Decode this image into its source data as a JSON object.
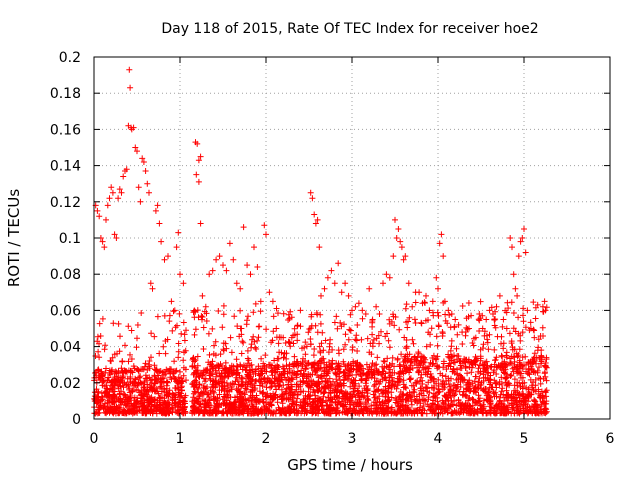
{
  "chart_data": {
    "type": "scatter",
    "title": "Day 118 of 2015, Rate Of TEC Index for receiver hoe2",
    "xlabel": "GPS time / hours",
    "ylabel": "ROTI / TECUs",
    "xlim": [
      0,
      6
    ],
    "ylim": [
      0,
      0.2
    ],
    "x_ticks": [
      "0",
      "1",
      "2",
      "3",
      "4",
      "5",
      "6"
    ],
    "y_ticks": [
      "0",
      "0.02",
      "0.04",
      "0.06",
      "0.08",
      "0.1",
      "0.12",
      "0.14",
      "0.16",
      "0.18",
      "0.2"
    ],
    "grid": true,
    "marker": "plus",
    "series_color": "#ff0000",
    "series": [
      {
        "name": "hoe2",
        "points": [
          [
            0.02,
            0.118
          ],
          [
            0.04,
            0.115
          ],
          [
            0.06,
            0.112
          ],
          [
            0.08,
            0.1
          ],
          [
            0.1,
            0.098
          ],
          [
            0.12,
            0.095
          ],
          [
            0.14,
            0.11
          ],
          [
            0.16,
            0.118
          ],
          [
            0.18,
            0.122
          ],
          [
            0.2,
            0.128
          ],
          [
            0.22,
            0.125
          ],
          [
            0.24,
            0.102
          ],
          [
            0.26,
            0.1
          ],
          [
            0.28,
            0.122
          ],
          [
            0.3,
            0.127
          ],
          [
            0.32,
            0.125
          ],
          [
            0.34,
            0.134
          ],
          [
            0.36,
            0.137
          ],
          [
            0.38,
            0.138
          ],
          [
            0.4,
            0.162
          ],
          [
            0.41,
            0.193
          ],
          [
            0.42,
            0.183
          ],
          [
            0.43,
            0.161
          ],
          [
            0.44,
            0.16
          ],
          [
            0.46,
            0.161
          ],
          [
            0.48,
            0.15
          ],
          [
            0.5,
            0.148
          ],
          [
            0.52,
            0.128
          ],
          [
            0.54,
            0.12
          ],
          [
            0.56,
            0.144
          ],
          [
            0.58,
            0.142
          ],
          [
            0.6,
            0.137
          ],
          [
            0.62,
            0.13
          ],
          [
            0.64,
            0.125
          ],
          [
            0.66,
            0.075
          ],
          [
            0.68,
            0.072
          ],
          [
            0.72,
            0.115
          ],
          [
            0.74,
            0.118
          ],
          [
            0.76,
            0.108
          ],
          [
            0.78,
            0.098
          ],
          [
            0.82,
            0.088
          ],
          [
            0.86,
            0.09
          ],
          [
            0.9,
            0.065
          ],
          [
            0.94,
            0.06
          ],
          [
            0.96,
            0.095
          ],
          [
            0.98,
            0.103
          ],
          [
            1.0,
            0.08
          ],
          [
            1.04,
            0.075
          ],
          [
            1.18,
            0.153
          ],
          [
            1.2,
            0.152
          ],
          [
            1.22,
            0.143
          ],
          [
            1.24,
            0.145
          ],
          [
            1.19,
            0.135
          ],
          [
            1.22,
            0.131
          ],
          [
            1.24,
            0.108
          ],
          [
            1.26,
            0.068
          ],
          [
            1.3,
            0.062
          ],
          [
            1.34,
            0.08
          ],
          [
            1.38,
            0.082
          ],
          [
            1.42,
            0.088
          ],
          [
            1.46,
            0.09
          ],
          [
            1.5,
            0.085
          ],
          [
            1.54,
            0.082
          ],
          [
            1.58,
            0.097
          ],
          [
            1.62,
            0.088
          ],
          [
            1.66,
            0.075
          ],
          [
            1.7,
            0.072
          ],
          [
            1.74,
            0.106
          ],
          [
            1.78,
            0.085
          ],
          [
            1.82,
            0.08
          ],
          [
            1.86,
            0.095
          ],
          [
            1.9,
            0.084
          ],
          [
            1.94,
            0.065
          ],
          [
            1.98,
            0.107
          ],
          [
            2.0,
            0.102
          ],
          [
            2.04,
            0.07
          ],
          [
            2.08,
            0.065
          ],
          [
            2.12,
            0.05
          ],
          [
            2.2,
            0.045
          ],
          [
            2.3,
            0.045
          ],
          [
            2.4,
            0.06
          ],
          [
            2.52,
            0.125
          ],
          [
            2.54,
            0.122
          ],
          [
            2.56,
            0.113
          ],
          [
            2.58,
            0.108
          ],
          [
            2.6,
            0.11
          ],
          [
            2.62,
            0.095
          ],
          [
            2.64,
            0.068
          ],
          [
            2.68,
            0.072
          ],
          [
            2.72,
            0.078
          ],
          [
            2.76,
            0.082
          ],
          [
            2.8,
            0.075
          ],
          [
            2.84,
            0.086
          ],
          [
            2.88,
            0.07
          ],
          [
            2.92,
            0.075
          ],
          [
            2.96,
            0.068
          ],
          [
            3.0,
            0.06
          ],
          [
            3.04,
            0.062
          ],
          [
            3.08,
            0.064
          ],
          [
            3.12,
            0.06
          ],
          [
            3.16,
            0.058
          ],
          [
            3.2,
            0.072
          ],
          [
            3.24,
            0.055
          ],
          [
            3.28,
            0.062
          ],
          [
            3.32,
            0.058
          ],
          [
            3.36,
            0.075
          ],
          [
            3.4,
            0.08
          ],
          [
            3.44,
            0.078
          ],
          [
            3.48,
            0.09
          ],
          [
            3.5,
            0.11
          ],
          [
            3.52,
            0.1
          ],
          [
            3.54,
            0.105
          ],
          [
            3.56,
            0.098
          ],
          [
            3.58,
            0.095
          ],
          [
            3.6,
            0.088
          ],
          [
            3.62,
            0.09
          ],
          [
            3.66,
            0.075
          ],
          [
            3.7,
            0.062
          ],
          [
            3.74,
            0.07
          ],
          [
            3.78,
            0.07
          ],
          [
            3.82,
            0.064
          ],
          [
            3.86,
            0.068
          ],
          [
            3.9,
            0.06
          ],
          [
            3.94,
            0.065
          ],
          [
            3.98,
            0.078
          ],
          [
            4.0,
            0.072
          ],
          [
            4.02,
            0.097
          ],
          [
            4.04,
            0.102
          ],
          [
            4.06,
            0.09
          ],
          [
            4.08,
            0.065
          ],
          [
            4.12,
            0.06
          ],
          [
            4.16,
            0.058
          ],
          [
            4.2,
            0.055
          ],
          [
            4.24,
            0.052
          ],
          [
            4.28,
            0.048
          ],
          [
            4.32,
            0.046
          ],
          [
            4.36,
            0.05
          ],
          [
            4.4,
            0.042
          ],
          [
            4.44,
            0.045
          ],
          [
            4.48,
            0.058
          ],
          [
            4.52,
            0.05
          ],
          [
            4.56,
            0.055
          ],
          [
            4.6,
            0.06
          ],
          [
            4.64,
            0.058
          ],
          [
            4.68,
            0.062
          ],
          [
            4.72,
            0.068
          ],
          [
            4.76,
            0.055
          ],
          [
            4.8,
            0.05
          ],
          [
            4.84,
            0.1
          ],
          [
            4.86,
            0.095
          ],
          [
            4.88,
            0.08
          ],
          [
            4.9,
            0.072
          ],
          [
            4.92,
            0.068
          ],
          [
            4.94,
            0.09
          ],
          [
            4.96,
            0.098
          ],
          [
            4.98,
            0.1
          ],
          [
            5.0,
            0.105
          ],
          [
            5.02,
            0.092
          ],
          [
            5.04,
            0.06
          ],
          [
            5.08,
            0.05
          ],
          [
            5.12,
            0.045
          ],
          [
            5.16,
            0.038
          ],
          [
            5.2,
            0.035
          ],
          [
            5.22,
            0.062
          ],
          [
            5.24,
            0.065
          ],
          [
            5.25,
            0.06
          ]
        ],
        "density_bands": [
          {
            "x_from": 0.0,
            "x_to": 1.07,
            "y_from": 0.003,
            "y_to": 0.028,
            "count": 650
          },
          {
            "x_from": 0.0,
            "x_to": 1.07,
            "y_from": 0.02,
            "y_to": 0.06,
            "count": 110
          },
          {
            "x_from": 1.14,
            "x_to": 2.3,
            "y_from": 0.003,
            "y_to": 0.03,
            "count": 700
          },
          {
            "x_from": 1.14,
            "x_to": 2.3,
            "y_from": 0.025,
            "y_to": 0.065,
            "count": 160
          },
          {
            "x_from": 2.3,
            "x_to": 3.6,
            "y_from": 0.003,
            "y_to": 0.032,
            "count": 760
          },
          {
            "x_from": 2.3,
            "x_to": 3.6,
            "y_from": 0.025,
            "y_to": 0.06,
            "count": 170
          },
          {
            "x_from": 3.6,
            "x_to": 5.27,
            "y_from": 0.003,
            "y_to": 0.035,
            "count": 900
          },
          {
            "x_from": 3.6,
            "x_to": 5.27,
            "y_from": 0.028,
            "y_to": 0.065,
            "count": 220
          }
        ]
      }
    ]
  }
}
